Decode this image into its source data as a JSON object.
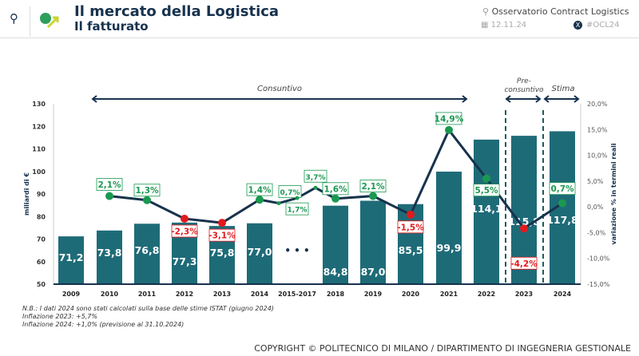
{
  "header": {
    "title": "Il mercato della Logistica",
    "subtitle": "Il fatturato",
    "observatory": "Osservatorio Contract Logistics",
    "date": "12.11.24",
    "hashtag": "#OCL24"
  },
  "chart_data": {
    "type": "bar+line",
    "categories": [
      "2009",
      "2010",
      "2011",
      "2012",
      "2013",
      "2014",
      "2015-2017",
      "2018",
      "2019",
      "2020",
      "2021",
      "2022",
      "2023",
      "2024"
    ],
    "bars": {
      "ylabel": "miliardi di €",
      "ylim": [
        50,
        130
      ],
      "yticks": [
        "50",
        "60",
        "70",
        "80",
        "90",
        "100",
        "110",
        "120",
        "130"
      ],
      "values": [
        71.2,
        73.8,
        76.8,
        77.3,
        75.8,
        77.0,
        null,
        84.8,
        87.0,
        85.5,
        99.9,
        114.1,
        115.8,
        117.8
      ],
      "labels": [
        "71,2",
        "73,8",
        "76,8",
        "77,3",
        "75,8",
        "77,0",
        "",
        "84,8",
        "87,0",
        "85,5",
        "99,9",
        "114,1",
        "115,8",
        "117,8"
      ],
      "color": "#1e6b78"
    },
    "line": {
      "ylabel": "variazione % in termini reali",
      "ylim": [
        -15,
        20
      ],
      "yticks": [
        "-15,0%",
        "-10,0%",
        "-5,0%",
        "0,0%",
        "5,0%",
        "10,0%",
        "15,0%",
        "20,0%"
      ],
      "points": [
        {
          "cat": "2010",
          "value": 2.1,
          "label": "2,1%"
        },
        {
          "cat": "2011",
          "value": 1.3,
          "label": "1,3%"
        },
        {
          "cat": "2012",
          "value": -2.3,
          "label": "-2,3%"
        },
        {
          "cat": "2013",
          "value": -3.1,
          "label": "-3,1%"
        },
        {
          "cat": "2014",
          "value": 1.4,
          "label": "1,4%"
        },
        {
          "cat": "2015",
          "value": 0.7,
          "label": "0,7%"
        },
        {
          "cat": "2016",
          "value": 1.7,
          "label": "1,7%"
        },
        {
          "cat": "2017",
          "value": 3.7,
          "label": "3,7%"
        },
        {
          "cat": "2018",
          "value": 1.6,
          "label": "1,6%"
        },
        {
          "cat": "2019",
          "value": 2.1,
          "label": "2,1%"
        },
        {
          "cat": "2020",
          "value": -1.5,
          "label": "-1,5%"
        },
        {
          "cat": "2021",
          "value": 14.9,
          "label": "14,9%"
        },
        {
          "cat": "2022",
          "value": 5.5,
          "label": "5,5%"
        },
        {
          "cat": "2023",
          "value": -4.2,
          "label": "-4,2%"
        },
        {
          "cat": "2024",
          "value": 0.7,
          "label": "0,7%"
        }
      ],
      "line_color": "#17324d",
      "positive_color": "#1a9850",
      "negative_color": "#e31a1c"
    },
    "gap_marker": "• • •",
    "periods": [
      "Consuntivo",
      "Pre-\nconsuntivo",
      "Stima"
    ]
  },
  "notes": [
    "N.B.: I dati 2024 sono stati calcolati sulla base delle stime ISTAT (giugno 2024)",
    "Inflazione 2023: +5,7%",
    "Inflazione 2024: +1,0% (previsione al 31.10.2024)"
  ],
  "copyright": "COPYRIGHT © POLITECNICO DI MILANO / DIPARTIMENTO DI INGEGNERIA GESTIONALE"
}
